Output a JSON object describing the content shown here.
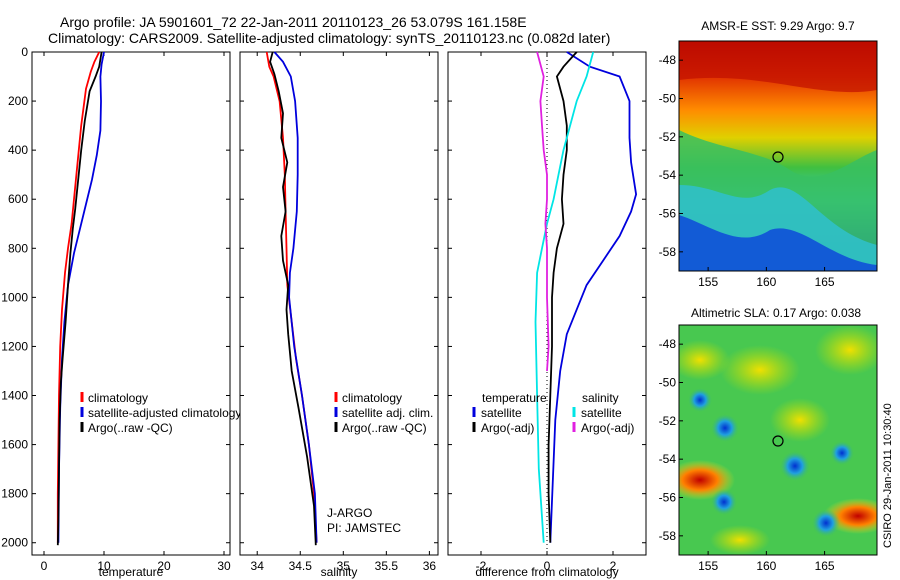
{
  "header": {
    "line1": "Argo profile: JA 5901601_72 22-Jan-2011 20110123_26 53.079S 161.158E",
    "line2": "Climatology: CARS2009. Satellite-adjusted climatology: synTS_20110123.nc (0.082d later)"
  },
  "stamp": "CSIRO 29-Jan-2011 10:30:40",
  "colors": {
    "red": "#ff0000",
    "blue": "#0000dd",
    "black": "#000000",
    "cyan": "#00e5e5",
    "magenta": "#e020e0"
  },
  "chart_data": [
    {
      "type": "line",
      "id": "temperature",
      "xlabel": "temperature",
      "ylabel": "",
      "xlim": [
        -2,
        31
      ],
      "ylim": [
        2050,
        0
      ],
      "y_reversed": true,
      "xticks": [
        0,
        10,
        20,
        30
      ],
      "yticks": [
        0,
        200,
        400,
        600,
        800,
        1000,
        1200,
        1400,
        1600,
        1800,
        2000
      ],
      "series": [
        {
          "name": "climatology",
          "color": "#ff0000",
          "x": [
            9.2,
            8.4,
            7.8,
            7.0,
            6.2,
            5.6,
            5.0,
            4.6,
            4.0,
            3.5,
            3.0,
            2.7,
            2.5,
            2.4,
            2.3,
            2.3
          ],
          "y": [
            0,
            40,
            80,
            150,
            300,
            450,
            600,
            700,
            800,
            900,
            1050,
            1200,
            1400,
            1600,
            1800,
            2000
          ]
        },
        {
          "name": "satellite-adjusted climatology",
          "color": "#0000dd",
          "x": [
            10.0,
            9.6,
            9.4,
            9.5,
            9.4,
            8.8,
            8.0,
            7.0,
            6.0,
            5.0,
            4.0,
            3.4,
            3.0,
            2.7,
            2.5,
            2.4
          ],
          "y": [
            0,
            50,
            100,
            200,
            320,
            420,
            520,
            620,
            720,
            820,
            950,
            1100,
            1250,
            1450,
            1700,
            2000
          ]
        },
        {
          "name": "Argo(..raw -QC)",
          "color": "#000000",
          "x": [
            9.6,
            9.2,
            8.6,
            7.6,
            6.8,
            6.2,
            5.7,
            5.2,
            4.8,
            4.4,
            4.0,
            3.6,
            3.1,
            2.8,
            2.6,
            2.5,
            2.4,
            2.3
          ],
          "y": [
            0,
            60,
            100,
            160,
            280,
            400,
            520,
            640,
            720,
            820,
            950,
            1100,
            1250,
            1350,
            1500,
            1700,
            1900,
            2010
          ]
        }
      ],
      "legend": [
        "climatology",
        "satellite-adjusted climatology",
        "Argo(..raw -QC)"
      ]
    },
    {
      "type": "line",
      "id": "salinity",
      "xlabel": "salinity",
      "ylabel": "",
      "xlim": [
        33.8,
        36.1
      ],
      "ylim": [
        2050,
        0
      ],
      "y_reversed": true,
      "xticks": [
        34,
        34.5,
        35,
        35.5,
        36
      ],
      "series": [
        {
          "name": "climatology",
          "color": "#ff0000",
          "x": [
            34.11,
            34.14,
            34.19,
            34.26,
            34.3,
            34.32,
            34.33,
            34.34,
            34.35,
            34.4,
            34.45,
            34.52,
            34.6,
            34.66,
            34.69
          ],
          "y": [
            0,
            60,
            100,
            200,
            350,
            500,
            650,
            800,
            950,
            1100,
            1250,
            1400,
            1600,
            1800,
            2000
          ]
        },
        {
          "name": "satellite adj. clim.",
          "color": "#0000dd",
          "x": [
            34.2,
            34.3,
            34.39,
            34.44,
            34.47,
            34.47,
            34.46,
            34.42,
            34.38,
            34.37,
            34.43,
            34.52,
            34.6,
            34.67,
            34.69
          ],
          "y": [
            0,
            40,
            100,
            200,
            350,
            500,
            650,
            800,
            900,
            1000,
            1200,
            1400,
            1600,
            1800,
            2000
          ]
        },
        {
          "name": "Argo(..raw -QC)",
          "color": "#000000",
          "x": [
            34.18,
            34.15,
            34.2,
            34.25,
            34.3,
            34.28,
            34.35,
            34.3,
            34.33,
            34.28,
            34.3,
            34.36,
            34.34,
            34.36,
            34.4,
            34.48,
            34.58,
            34.66,
            34.68
          ],
          "y": [
            0,
            40,
            90,
            160,
            250,
            350,
            450,
            550,
            650,
            750,
            850,
            950,
            1050,
            1150,
            1300,
            1450,
            1650,
            1850,
            2010
          ]
        }
      ],
      "legend": [
        "climatology",
        "satellite adj. clim.",
        "Argo(..raw -QC)"
      ],
      "annotations": [
        "J-ARGO",
        "PI: JAMSTEC"
      ]
    },
    {
      "type": "line",
      "id": "difference",
      "xlabel": "difference from climatology",
      "ylabel": "",
      "xlim": [
        -3,
        3
      ],
      "ylim": [
        2050,
        0
      ],
      "y_reversed": true,
      "xticks": [
        -2,
        0,
        2
      ],
      "legend_headers": [
        "temperature",
        "salinity"
      ],
      "series": [
        {
          "name": "satellite",
          "group": "temperature",
          "color": "#0000dd",
          "x": [
            0.6,
            1.3,
            2.2,
            2.5,
            2.5,
            2.55,
            2.7,
            2.55,
            2.2,
            1.7,
            1.2,
            0.9,
            0.6,
            0.4,
            0.25,
            0.1
          ],
          "y": [
            0,
            60,
            100,
            200,
            350,
            450,
            580,
            650,
            750,
            850,
            950,
            1050,
            1150,
            1300,
            1500,
            2000
          ]
        },
        {
          "name": "Argo(-adj)",
          "group": "temperature",
          "color": "#000000",
          "x": [
            0.9,
            0.5,
            0.3,
            0.5,
            0.6,
            0.6,
            0.5,
            0.45,
            0.5,
            0.3,
            0.2,
            0.15,
            0.15,
            0.1,
            0.05,
            0.05,
            0.1
          ],
          "y": [
            0,
            60,
            100,
            200,
            300,
            400,
            500,
            600,
            700,
            800,
            900,
            1000,
            1200,
            1400,
            1600,
            1800,
            2000
          ]
        },
        {
          "name": "satellite",
          "group": "salinity",
          "color": "#00e5e5",
          "x": [
            1.4,
            1.2,
            0.9,
            0.7,
            0.5,
            0.35,
            0.2,
            0.0,
            -0.15,
            -0.3,
            -0.35,
            -0.3,
            -0.25,
            -0.1
          ],
          "y": [
            0,
            100,
            200,
            300,
            400,
            500,
            600,
            700,
            800,
            900,
            1100,
            1400,
            1700,
            2000
          ]
        },
        {
          "name": "Argo(-adj)",
          "group": "salinity",
          "color": "#e020e0",
          "x": [
            -0.3,
            -0.1,
            -0.2,
            -0.15,
            -0.1,
            0.0,
            0.0,
            -0.05,
            0.0,
            0.0,
            0.05,
            0.0
          ],
          "y": [
            0,
            100,
            200,
            300,
            400,
            500,
            600,
            700,
            800,
            1000,
            1200,
            1300
          ]
        }
      ]
    },
    {
      "type": "heatmap",
      "id": "sst_map",
      "title": "AMSR-E SST: 9.29 Argo: 9.7",
      "xlim": [
        152.5,
        169.5
      ],
      "ylim": [
        -59,
        -47
      ],
      "xticks": [
        155,
        160,
        165
      ],
      "yticks": [
        -48,
        -50,
        -52,
        -54,
        -56,
        -58
      ],
      "argo_marker": [
        161.158,
        -53.079
      ]
    },
    {
      "type": "heatmap",
      "id": "sla_map",
      "title": "Altimetric SLA: 0.17 Argo: 0.038",
      "xlim": [
        152.5,
        169.5
      ],
      "ylim": [
        -59,
        -47
      ],
      "xticks": [
        155,
        160,
        165
      ],
      "yticks": [
        -48,
        -50,
        -52,
        -54,
        -56,
        -58
      ],
      "argo_marker": [
        161.158,
        -53.079
      ]
    }
  ]
}
